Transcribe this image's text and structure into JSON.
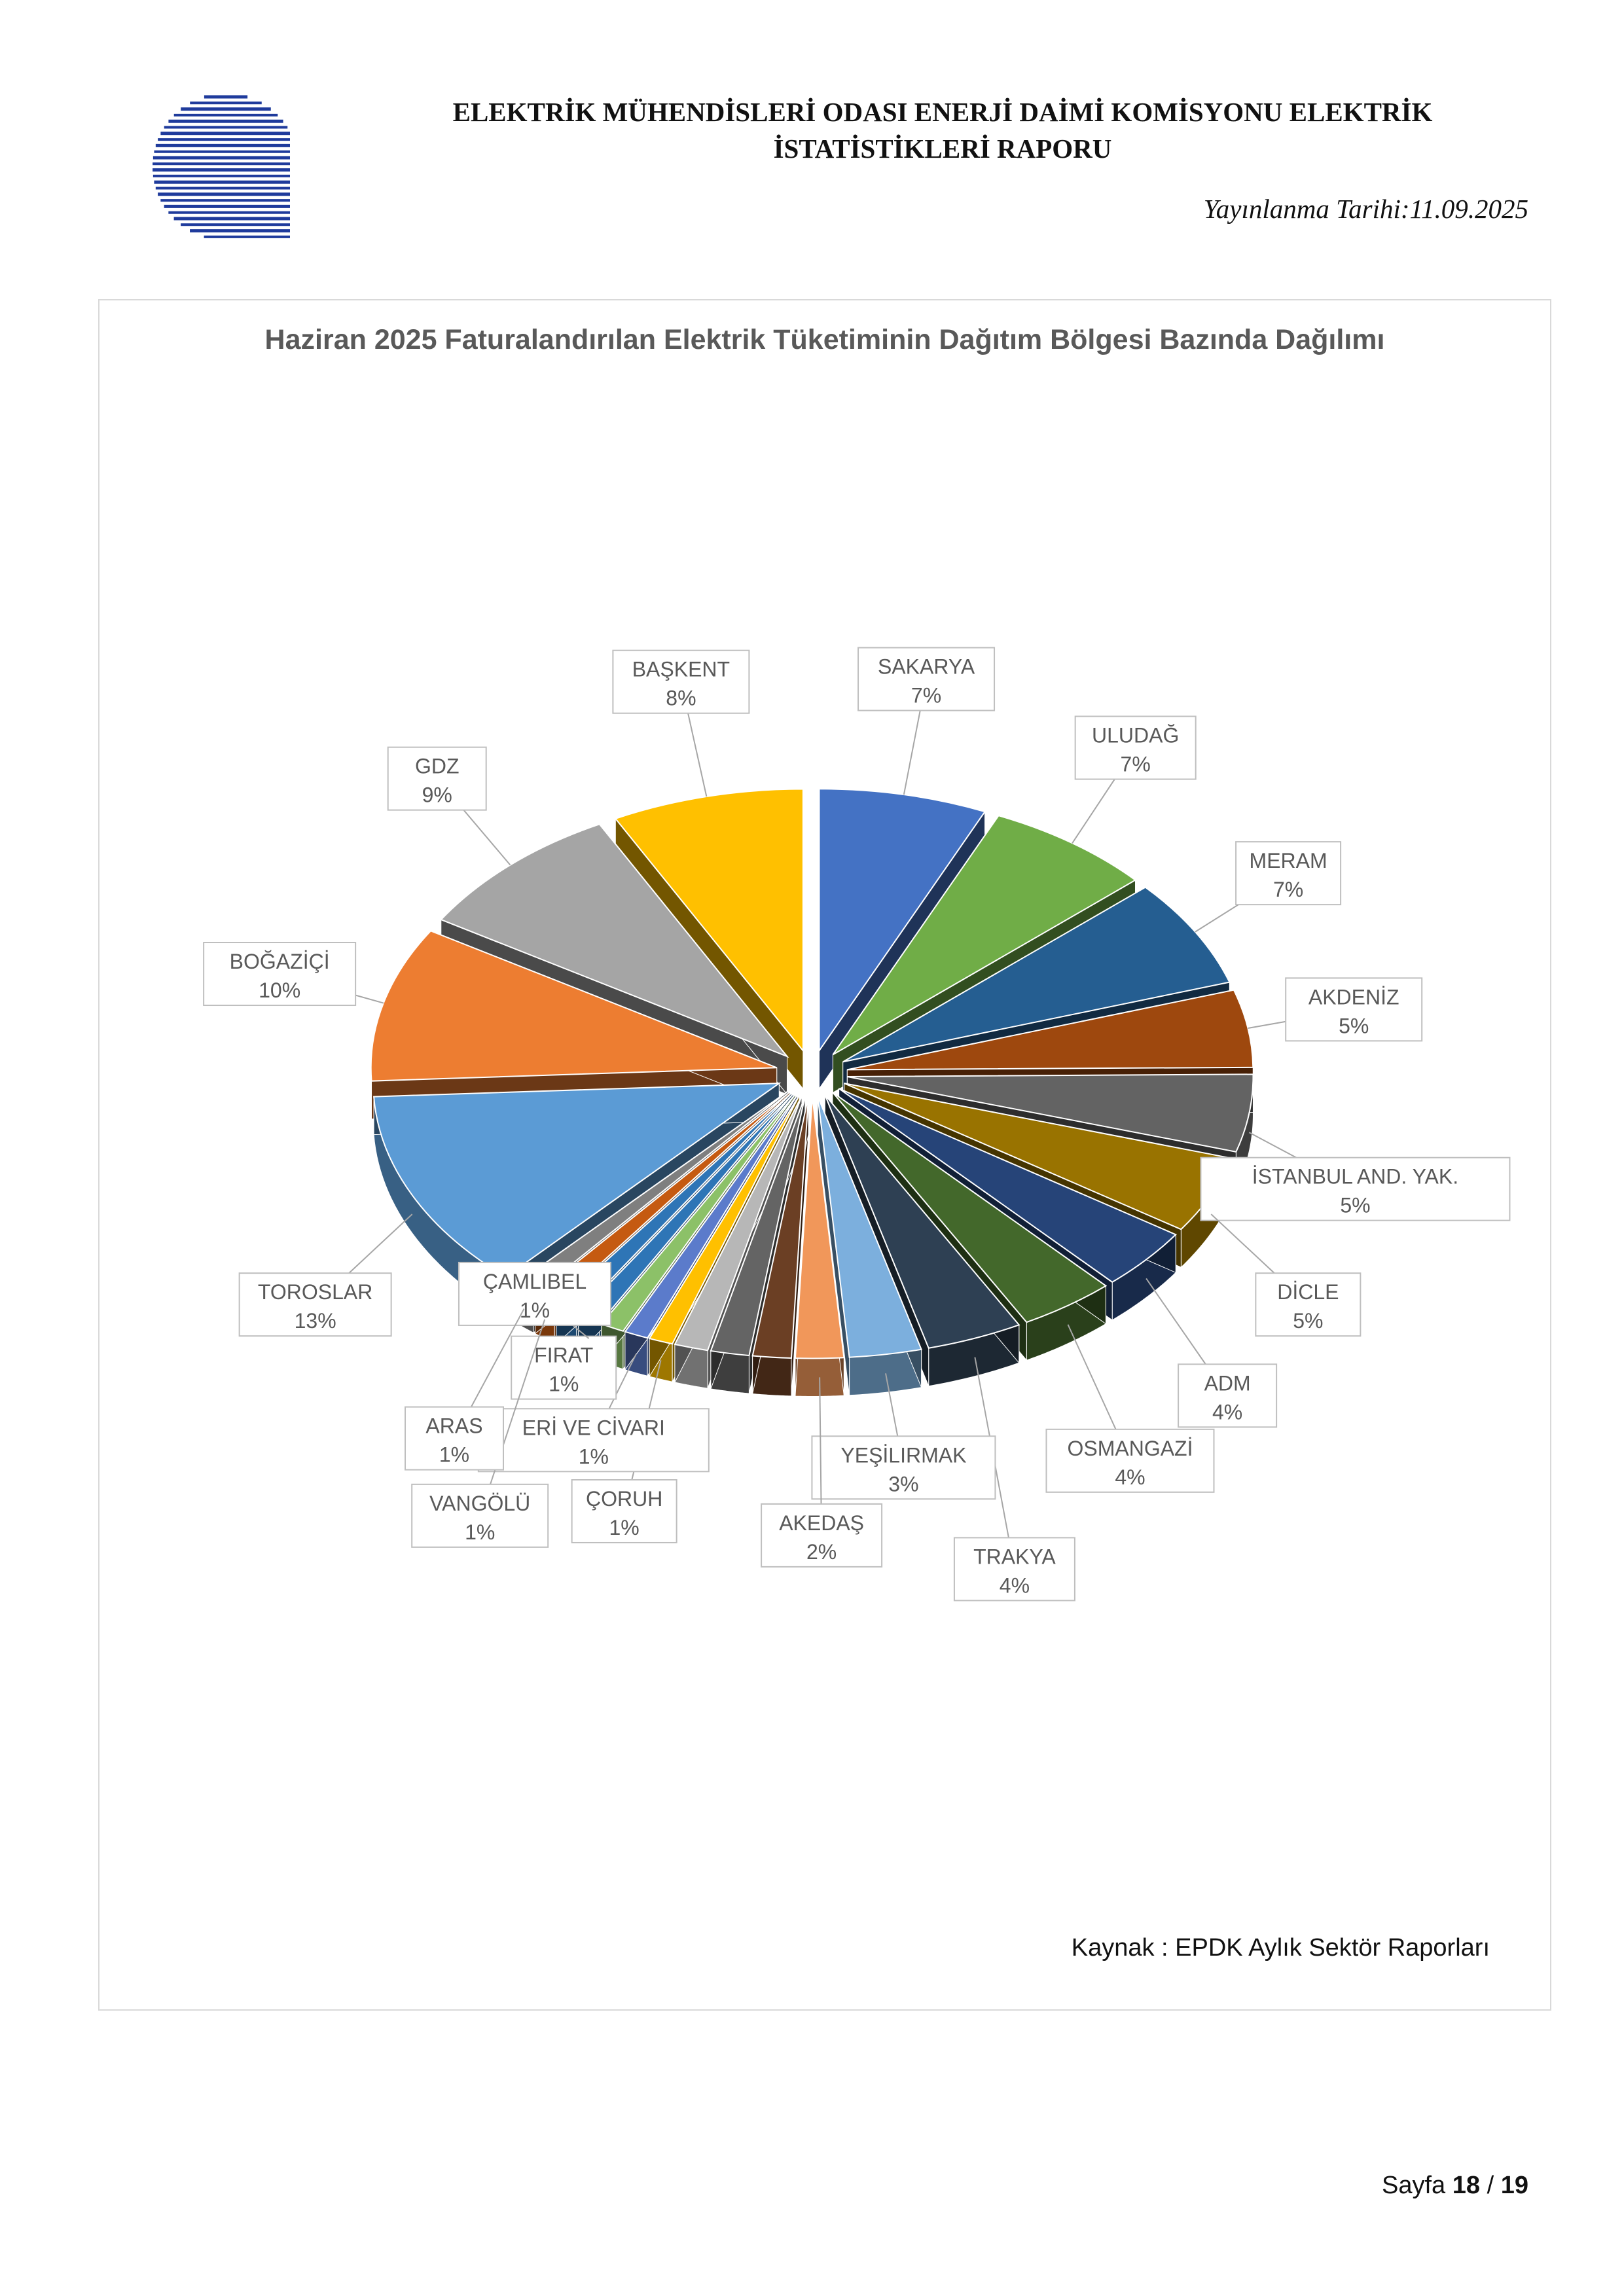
{
  "header": {
    "title_line1": "ELEKTRİK MÜHENDİSLERİ ODASI ENERJİ DAİMİ KOMİSYONU ELEKTRİK",
    "title_line2": "İSTATİSTİKLERİ RAPORU",
    "date": "Yayınlanma Tarihi:11.09.2025"
  },
  "source": "Kaynak : EPDK Aylık Sektör Raporları",
  "page": {
    "prefix": "Sayfa",
    "current": "18",
    "separator": "/",
    "total": "19"
  },
  "chart_data": {
    "type": "pie",
    "title": "Haziran 2025 Faturalandırılan Elektrik Tüketiminin Dağıtım Bölgesi Bazında Dağılımı",
    "exploded": true,
    "three_d": true,
    "slices": [
      {
        "label": "SAKARYA",
        "value_label": "7%",
        "value": 7,
        "color": "#4472C4"
      },
      {
        "label": "ULUDAĞ",
        "value_label": "7%",
        "value": 7,
        "color": "#70AD47"
      },
      {
        "label": "MERAM",
        "value_label": "7%",
        "value": 7,
        "color": "#255E91"
      },
      {
        "label": "AKDENİZ",
        "value_label": "5%",
        "value": 5,
        "color": "#9E480E"
      },
      {
        "label": "İSTANBUL AND. YAK.",
        "value_label": "5%",
        "value": 5,
        "color": "#636363"
      },
      {
        "label": "DİCLE",
        "value_label": "5%",
        "value": 5,
        "color": "#997300"
      },
      {
        "label": "ADM",
        "value_label": "4%",
        "value": 4,
        "color": "#264478"
      },
      {
        "label": "OSMANGAZİ",
        "value_label": "4%",
        "value": 4,
        "color": "#43682B"
      },
      {
        "label": "TRAKYA",
        "value_label": "4%",
        "value": 4,
        "color": "#2E4053"
      },
      {
        "label": "YEŞİLIRMAK",
        "value_label": "3%",
        "value": 3,
        "color": "#7CAFDD"
      },
      {
        "label": "AKEDAŞ",
        "value_label": "2%",
        "value": 2,
        "color": "#F1975A"
      },
      {
        "label": "",
        "value_label": "",
        "value": 1.6,
        "color": "#6B3F24"
      },
      {
        "label": "",
        "value_label": "",
        "value": 1.6,
        "color": "#646464"
      },
      {
        "label": "",
        "value_label": "",
        "value": 1.4,
        "color": "#B7B7B7"
      },
      {
        "label": "ÇORUH",
        "value_label": "1%",
        "value": 1,
        "color": "#FFC000"
      },
      {
        "label": "ERİ VE CİVARI",
        "value_label": "1%",
        "value": 1,
        "color": "#5B7BCB"
      },
      {
        "label": "FIRAT",
        "value_label": "1%",
        "value": 1,
        "color": "#8CC168"
      },
      {
        "label": "ÇAMLIBEL",
        "value_label": "1%",
        "value": 1,
        "color": "#2E75B6"
      },
      {
        "label": "",
        "value_label": "",
        "value": 1,
        "color": "#2E75B6"
      },
      {
        "label": "VANGÖLÜ",
        "value_label": "1%",
        "value": 1,
        "color": "#C55A11"
      },
      {
        "label": "ARAS",
        "value_label": "1%",
        "value": 1,
        "color": "#7F7F7F"
      },
      {
        "label": "TOROSLAR",
        "value_label": "13%",
        "value": 13,
        "color": "#5B9BD5"
      },
      {
        "label": "BOĞAZİÇİ",
        "value_label": "10%",
        "value": 10,
        "color": "#ED7D31"
      },
      {
        "label": "GDZ",
        "value_label": "9%",
        "value": 9,
        "color": "#A5A5A5"
      },
      {
        "label": "BAŞKENT",
        "value_label": "8%",
        "value": 8,
        "color": "#FFC000"
      }
    ]
  }
}
